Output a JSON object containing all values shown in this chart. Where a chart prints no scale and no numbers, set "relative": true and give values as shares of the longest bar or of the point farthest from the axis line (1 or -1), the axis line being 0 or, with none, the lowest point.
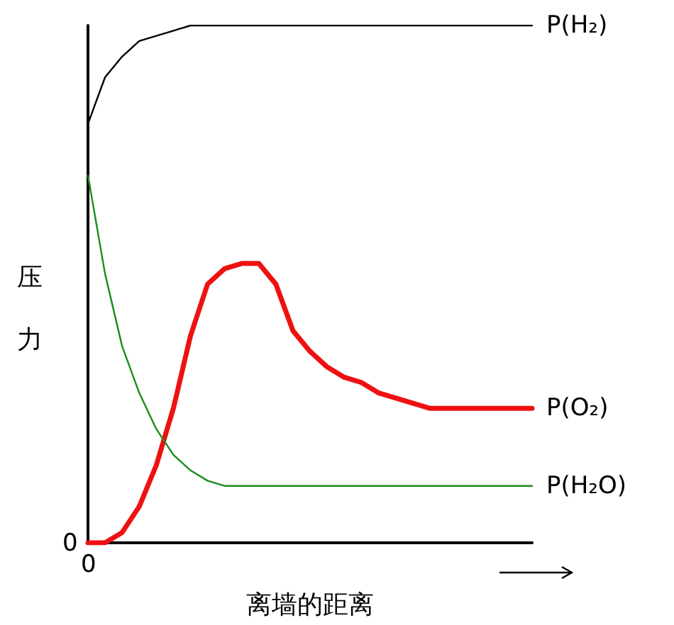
{
  "chart_data": {
    "type": "line",
    "relative": true,
    "xlabel": "离墙的距离",
    "ylabel": "压力",
    "categories": [
      null,
      null,
      null,
      null,
      null,
      null,
      null,
      null,
      null,
      null,
      null,
      null,
      null,
      null,
      null,
      null,
      null,
      null,
      null,
      null,
      null,
      null,
      null,
      null,
      null,
      null,
      null
    ],
    "series": [
      {
        "name": "P(H₂)",
        "color": "#000000",
        "values": [
          0.81,
          0.9,
          0.94,
          0.97,
          0.98,
          0.99,
          1,
          1,
          1,
          1,
          1,
          1,
          1,
          1,
          1,
          1,
          1,
          1,
          1,
          1,
          1,
          1,
          1,
          1,
          1,
          1,
          1
        ]
      },
      {
        "name": "P(O₂)",
        "color": "#ee1111",
        "values": [
          0,
          0,
          0.02,
          0.07,
          0.15,
          0.26,
          0.4,
          0.5,
          0.53,
          0.54,
          0.54,
          0.5,
          0.41,
          0.37,
          0.34,
          0.32,
          0.31,
          0.29,
          0.28,
          0.27,
          0.26,
          0.26,
          0.26,
          0.26,
          0.26,
          0.26,
          0.26
        ]
      },
      {
        "name": "P(H₂O)",
        "color": "#1a8c1a",
        "values": [
          0.71,
          0.52,
          0.38,
          0.29,
          0.22,
          0.17,
          0.14,
          0.12,
          0.11,
          0.11,
          0.11,
          0.11,
          0.11,
          0.11,
          0.11,
          0.11,
          0.11,
          0.11,
          0.11,
          0.11,
          0.11,
          0.11,
          0.11,
          0.11,
          0.11,
          0.11,
          0.11
        ]
      }
    ],
    "annotations": [
      "0",
      "0"
    ],
    "grid": false,
    "legend": false,
    "marker": "none",
    "line_style": "solid"
  }
}
